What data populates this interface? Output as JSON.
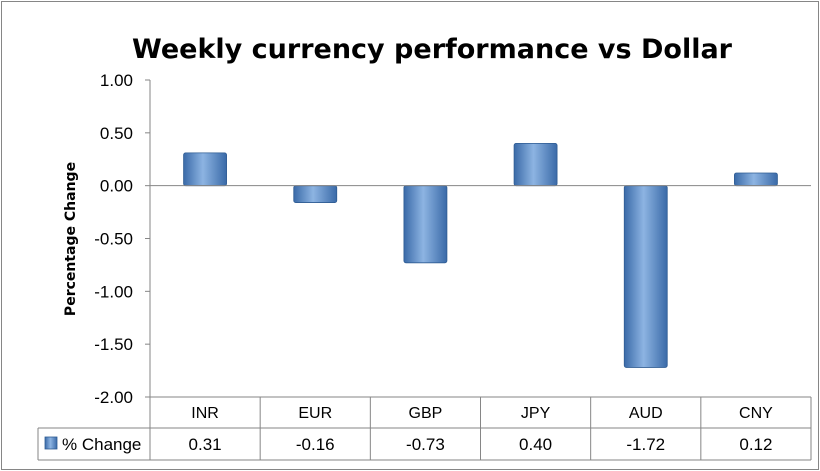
{
  "chart_data": {
    "type": "bar",
    "title": "Weekly currency performance vs Dollar",
    "ylabel": "Percentage Change",
    "xlabel": "",
    "categories": [
      "INR",
      "EUR",
      "GBP",
      "JPY",
      "AUD",
      "CNY"
    ],
    "series": [
      {
        "name": "% Change",
        "values": [
          0.31,
          -0.16,
          -0.73,
          0.4,
          -1.72,
          0.12
        ]
      }
    ],
    "data_labels": [
      "0.31",
      "-0.16",
      "-0.73",
      "0.40",
      "-1.72",
      "0.12"
    ],
    "ylim": [
      -2.0,
      1.0
    ],
    "yticks": [
      1.0,
      0.5,
      0.0,
      -0.5,
      -1.0,
      -1.5,
      -2.0
    ],
    "ytick_labels": [
      "1.00",
      "0.50",
      "0.00",
      "-0.50",
      "-1.00",
      "-1.50",
      "-2.00"
    ],
    "grid": false,
    "legend": "data-table",
    "bar_color": "#4F81BD",
    "bar_color_light": "#8DB4E2",
    "bar_color_dark": "#3A6AA8"
  }
}
